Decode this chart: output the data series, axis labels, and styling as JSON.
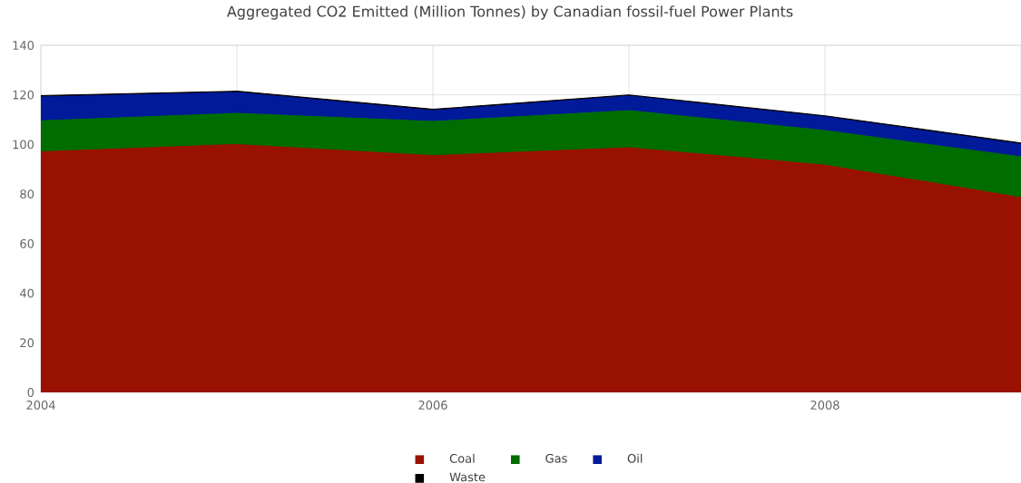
{
  "chart_data": {
    "type": "area",
    "title": "Aggregated CO2 Emitted (Million Tonnes) by Canadian fossil-fuel Power Plants",
    "x": [
      2004,
      2005,
      2006,
      2007,
      2008,
      2009
    ],
    "stacked": true,
    "series": [
      {
        "name": "Coal",
        "color": "#991100",
        "values": [
          97,
          100,
          95.5,
          98.7,
          91.7,
          78.6
        ]
      },
      {
        "name": "Gas",
        "color": "#006d00",
        "values": [
          12.6,
          12.6,
          13.8,
          15,
          13.9,
          16.4
        ]
      },
      {
        "name": "Oil",
        "color": "#001a99",
        "values": [
          9.6,
          8.4,
          4.4,
          5.8,
          5.5,
          5.1
        ]
      },
      {
        "name": "Waste",
        "color": "#000000",
        "values": [
          0.5,
          0.5,
          0.5,
          0.5,
          0.5,
          0.5
        ]
      }
    ],
    "xlim": [
      2004,
      2009
    ],
    "xticks": [
      2004,
      {
        "value": 2005,
        "label": null
      },
      2006,
      {
        "value": 2007,
        "label": null
      },
      2008
    ],
    "ylim": [
      0,
      140
    ],
    "yticks": [
      0,
      20,
      40,
      60,
      80,
      100,
      120,
      140
    ],
    "grid": true,
    "legend": "bottom"
  }
}
